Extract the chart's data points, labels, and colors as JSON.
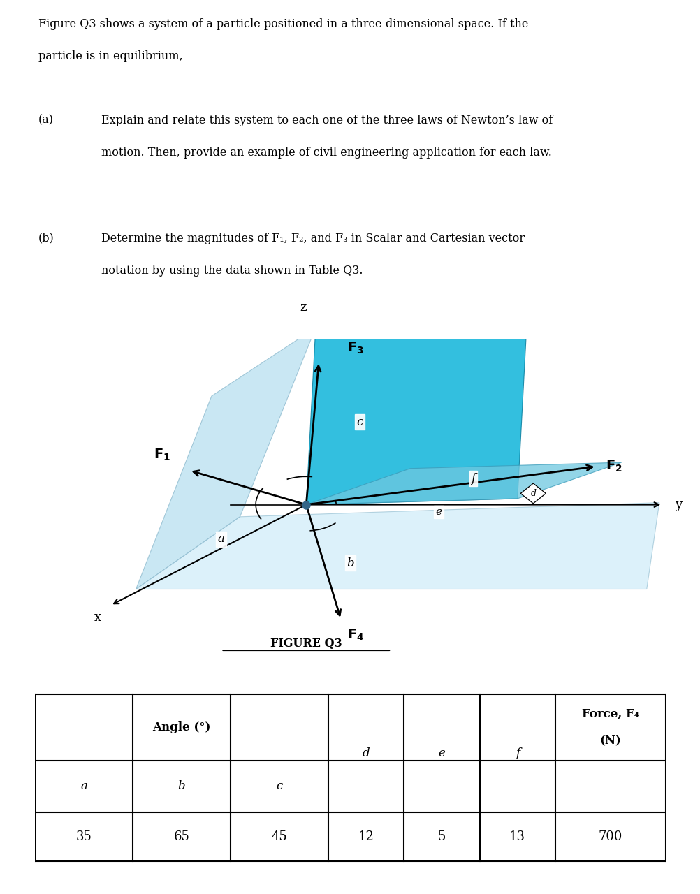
{
  "bg_color": "#ffffff",
  "text_intro_line1": "Figure Q3 shows a system of a particle positioned in a three-dimensional space. If the",
  "text_intro_line2": "particle is in equilibrium,",
  "part_a_label": "(a)",
  "part_a_line1": "Explain and relate this system to each one of the three laws of Newton’s law of",
  "part_a_line2": "motion. Then, provide an example of civil engineering application for each law.",
  "part_b_label": "(b)",
  "part_b_line1": "Determine the magnitudes of F₁, F₂, and F₃ in Scalar and Cartesian vector",
  "part_b_line2": "notation by using the data shown in Table Q3.",
  "figure_caption": "FIGURE Q3",
  "light_blue1": "#b8dff0",
  "light_blue2": "#c5e8f8",
  "med_blue": "#00b0d8",
  "blue2": "#6ec8e0",
  "table_angle_header": "Angle (°)",
  "table_d": "d",
  "table_e": "e",
  "table_f": "f",
  "table_force_header1": "Force, F₄",
  "table_force_header2": "(N)",
  "table_a": "a",
  "table_b": "b",
  "table_c": "c",
  "val_a": "35",
  "val_b": "65",
  "val_c": "45",
  "val_d": "12",
  "val_e": "5",
  "val_f": "13",
  "val_f4": "700"
}
